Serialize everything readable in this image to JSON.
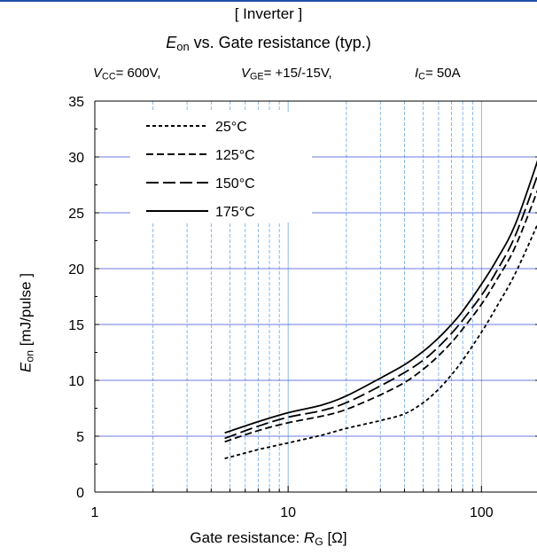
{
  "header": {
    "title_line1": "[ Inverter ]",
    "title_e": "E",
    "title_sub": "on",
    "title_rest": " vs.  Gate resistance  (typ.)",
    "cond_vcc_sym": "V",
    "cond_vcc_sub": "CC",
    "cond_vcc_val": "= 600V,",
    "cond_vge_sym": "V",
    "cond_vge_sub": "GE",
    "cond_vge_val": "= +15/-15V,",
    "cond_ic_sym": "I",
    "cond_ic_sub": "C",
    "cond_ic_val": "= 50A"
  },
  "colors": {
    "top_rule": "#1f4fa6",
    "grid_major": "#3b4fd8",
    "grid_minor": "#6fa8dc",
    "curve": "#000000"
  },
  "chart_data": {
    "type": "line",
    "x_scale": "log",
    "xlim": [
      1,
      200
    ],
    "ylim": [
      0,
      35
    ],
    "x_ticks": [
      1,
      10,
      100
    ],
    "x_tick_labels": [
      "1",
      "10",
      "100"
    ],
    "y_ticks": [
      0,
      5,
      10,
      15,
      20,
      25,
      30,
      35
    ],
    "y_tick_labels": [
      "0",
      "5",
      "10",
      "15",
      "20",
      "25",
      "30",
      "35"
    ],
    "xlabel_text": "Gate resistance: ",
    "xlabel_sym": "R",
    "xlabel_sub": "G",
    "xlabel_unit": " [Ω]",
    "ylabel_sym": "E",
    "ylabel_sub": "on",
    "ylabel_unit": " [mJ/pulse ]",
    "legend_position": "top-left",
    "series": [
      {
        "name": "25°C",
        "dash": "4,3",
        "x": [
          4.7,
          7,
          10,
          15,
          20,
          30,
          40,
          50,
          60,
          70,
          80,
          100,
          120,
          150,
          200
        ],
        "y": [
          3.0,
          3.8,
          4.4,
          5.1,
          5.7,
          6.4,
          7.0,
          8.0,
          9.2,
          10.5,
          11.8,
          14.3,
          16.6,
          19.6,
          24.4
        ]
      },
      {
        "name": "125°C",
        "dash": "8,4",
        "x": [
          4.7,
          7,
          10,
          15,
          20,
          30,
          40,
          50,
          60,
          70,
          80,
          100,
          120,
          150,
          200
        ],
        "y": [
          4.5,
          5.5,
          6.2,
          6.8,
          7.4,
          8.7,
          9.8,
          11.0,
          12.2,
          13.4,
          14.6,
          16.8,
          19.0,
          22.0,
          27.5
        ]
      },
      {
        "name": "150°C",
        "dash": "14,5",
        "x": [
          4.7,
          7,
          10,
          15,
          20,
          30,
          40,
          50,
          60,
          70,
          80,
          100,
          120,
          150,
          200
        ],
        "y": [
          4.8,
          5.9,
          6.7,
          7.3,
          8.0,
          9.5,
          10.7,
          11.8,
          13.0,
          14.2,
          15.4,
          17.6,
          19.8,
          23.0,
          28.9
        ]
      },
      {
        "name": "175°C",
        "dash": "",
        "x": [
          4.7,
          7,
          10,
          15,
          20,
          30,
          40,
          50,
          60,
          70,
          80,
          100,
          120,
          150,
          200
        ],
        "y": [
          5.3,
          6.3,
          7.1,
          7.8,
          8.6,
          10.2,
          11.4,
          12.6,
          13.8,
          15.0,
          16.2,
          18.6,
          20.8,
          24.0,
          30.2
        ]
      }
    ]
  }
}
